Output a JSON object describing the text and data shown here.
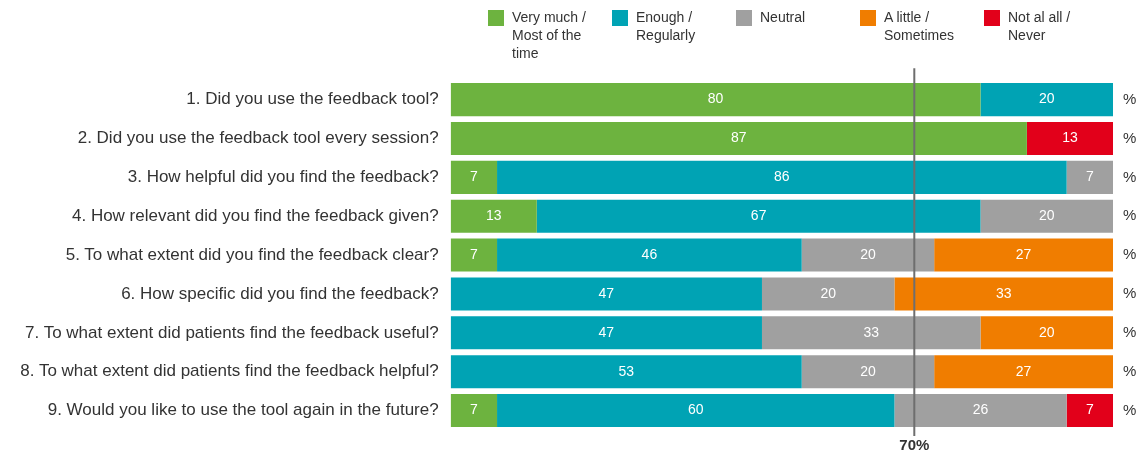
{
  "chart_data": {
    "type": "bar",
    "orientation": "horizontal",
    "stacked": true,
    "categories": [
      "1. Did you use the feedback tool?",
      "2. Did you use the feedback tool every session?",
      "3. How helpful did you find the feedback?",
      "4. How relevant did you find the feedback given?",
      "5. To what extent did you find the feedback clear?",
      "6. How specific did you find the feedback?",
      "7. To what extent did patients find the feedback useful?",
      "8. To what extent did patients find the feedback helpful?",
      "9. Would you like to use the tool again in the future?"
    ],
    "series": [
      {
        "name": "Very much / Most of the time",
        "color": "#6db33f",
        "values": [
          80,
          87,
          7,
          13,
          7,
          null,
          null,
          null,
          7
        ]
      },
      {
        "name": "Enough / Regularly",
        "color": "#00a3b4",
        "values": [
          20,
          null,
          86,
          67,
          46,
          47,
          47,
          53,
          60
        ]
      },
      {
        "name": "Neutral",
        "color": "#a0a0a0",
        "values": [
          null,
          null,
          7,
          20,
          20,
          20,
          33,
          20,
          26
        ]
      },
      {
        "name": "A little / Sometimes",
        "color": "#f07d00",
        "values": [
          null,
          null,
          null,
          null,
          27,
          33,
          20,
          27,
          null
        ]
      },
      {
        "name": "Not al all / Never",
        "color": "#e2001a",
        "values": [
          null,
          13,
          null,
          null,
          null,
          null,
          null,
          null,
          7
        ]
      }
    ],
    "xlim": [
      0,
      100
    ],
    "tick_labels": "y",
    "data_labels": true,
    "legend": "top right",
    "grid": false,
    "ref_lines": [
      {
        "axis": "x",
        "value": 70,
        "label": "70%",
        "color": "#6e6e6e"
      }
    ],
    "annotations": [
      "%"
    ]
  }
}
